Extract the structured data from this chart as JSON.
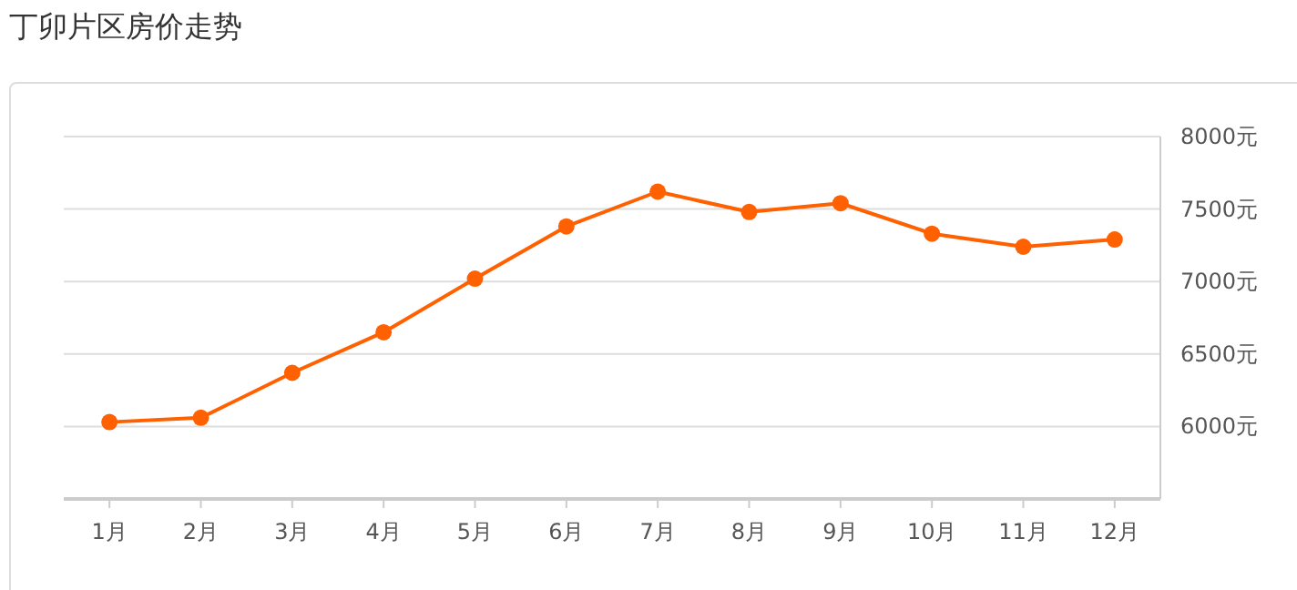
{
  "chart_data": {
    "type": "line",
    "title": "丁卯片区房价走势",
    "categories": [
      "1月",
      "2月",
      "3月",
      "4月",
      "5月",
      "6月",
      "7月",
      "8月",
      "9月",
      "10月",
      "11月",
      "12月"
    ],
    "series": [
      {
        "color": "#ff6000",
        "values": [
          6030,
          6060,
          6370,
          6650,
          7020,
          7380,
          7620,
          7480,
          7540,
          7330,
          7240,
          7290
        ]
      }
    ],
    "ylim": [
      5500,
      8000
    ],
    "yticks": [
      {
        "value": 6000,
        "label": "6000元"
      },
      {
        "value": 6500,
        "label": "6500元"
      },
      {
        "value": 7000,
        "label": "7000元"
      },
      {
        "value": 7500,
        "label": "7500元"
      },
      {
        "value": 8000,
        "label": "8000元"
      }
    ],
    "grid": "y",
    "marker": "circle",
    "line_style": "solid"
  }
}
